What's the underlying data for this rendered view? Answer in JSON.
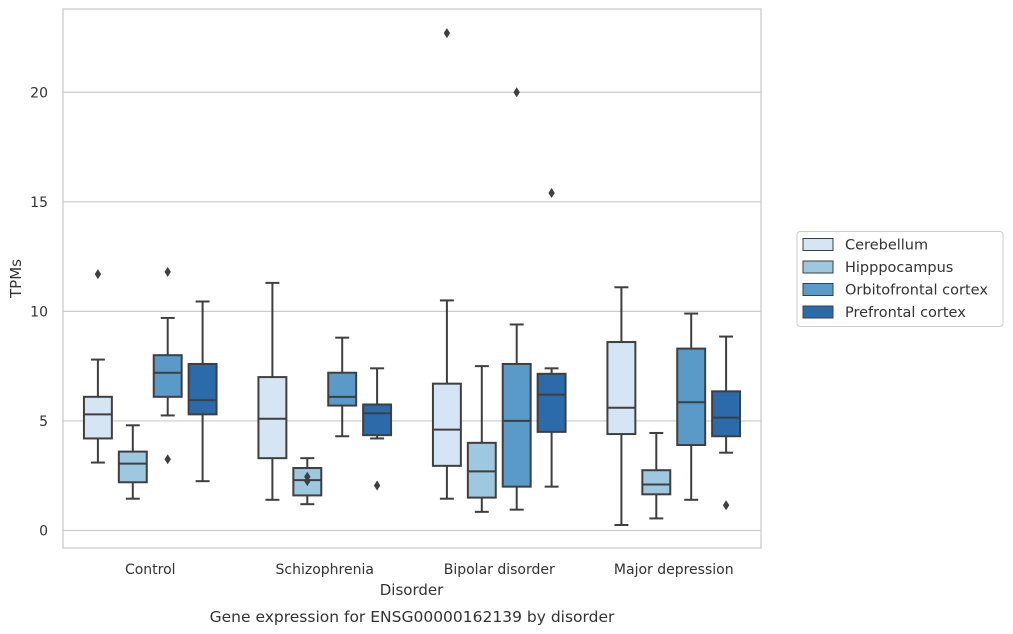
{
  "caption": "Gene expression for ENSG00000162139 by disorder",
  "chart_data": {
    "type": "box",
    "xlabel": "Disorder",
    "ylabel": "TPMs",
    "ylim": [
      -0.8,
      23.8
    ],
    "yticks": [
      0,
      5,
      10,
      15,
      20
    ],
    "ytick_labels": [
      "0",
      "5",
      "10",
      "15",
      "20"
    ],
    "grid": "horizontal",
    "legend_position": "right",
    "categories": [
      "Control",
      "Schizophrenia",
      "Bipolar disorder",
      "Major depression"
    ],
    "series": [
      {
        "name": "Cerebellum",
        "color": "#d6e5f4",
        "boxes": [
          {
            "whislo": 3.1,
            "q1": 4.2,
            "med": 5.3,
            "q3": 6.1,
            "whishi": 7.8,
            "fliers": [
              11.7
            ]
          },
          {
            "whislo": 1.4,
            "q1": 3.3,
            "med": 5.1,
            "q3": 7.0,
            "whishi": 11.3,
            "fliers": []
          },
          {
            "whislo": 1.45,
            "q1": 2.95,
            "med": 4.6,
            "q3": 6.7,
            "whishi": 10.5,
            "fliers": [
              22.7
            ]
          },
          {
            "whislo": 0.25,
            "q1": 4.4,
            "med": 5.6,
            "q3": 8.6,
            "whishi": 11.1,
            "fliers": []
          }
        ]
      },
      {
        "name": "Hipppocampus",
        "color": "#9dc8e0",
        "boxes": [
          {
            "whislo": 1.45,
            "q1": 2.2,
            "med": 3.05,
            "q3": 3.6,
            "whishi": 4.8,
            "fliers": []
          },
          {
            "whislo": 1.2,
            "q1": 1.6,
            "med": 2.3,
            "q3": 2.85,
            "whishi": 3.3,
            "fliers": [
              2.25,
              2.45
            ]
          },
          {
            "whislo": 0.85,
            "q1": 1.5,
            "med": 2.7,
            "q3": 4.0,
            "whishi": 7.5,
            "fliers": []
          },
          {
            "whislo": 0.55,
            "q1": 1.65,
            "med": 2.1,
            "q3": 2.75,
            "whishi": 4.45,
            "fliers": []
          }
        ]
      },
      {
        "name": "Orbitofrontal cortex",
        "color": "#5a9ac8",
        "boxes": [
          {
            "whislo": 5.25,
            "q1": 6.1,
            "med": 7.2,
            "q3": 8.0,
            "whishi": 9.7,
            "fliers": [
              3.25,
              11.8
            ]
          },
          {
            "whislo": 4.3,
            "q1": 5.7,
            "med": 6.1,
            "q3": 7.2,
            "whishi": 8.8,
            "fliers": []
          },
          {
            "whislo": 0.95,
            "q1": 2.0,
            "med": 5.0,
            "q3": 7.6,
            "whishi": 9.4,
            "fliers": [
              20.0
            ]
          },
          {
            "whislo": 1.4,
            "q1": 3.9,
            "med": 5.85,
            "q3": 8.3,
            "whishi": 9.9,
            "fliers": []
          }
        ]
      },
      {
        "name": "Prefrontal cortex",
        "color": "#2b6aab",
        "boxes": [
          {
            "whislo": 2.25,
            "q1": 5.3,
            "med": 5.95,
            "q3": 7.6,
            "whishi": 10.45,
            "fliers": []
          },
          {
            "whislo": 4.2,
            "q1": 4.35,
            "med": 5.35,
            "q3": 5.75,
            "whishi": 7.4,
            "fliers": [
              2.05
            ]
          },
          {
            "whislo": 2.0,
            "q1": 4.5,
            "med": 6.2,
            "q3": 7.15,
            "whishi": 7.4,
            "fliers": [
              15.4
            ]
          },
          {
            "whislo": 3.55,
            "q1": 4.3,
            "med": 5.15,
            "q3": 6.35,
            "whishi": 8.85,
            "fliers": [
              1.15
            ]
          }
        ]
      }
    ]
  }
}
